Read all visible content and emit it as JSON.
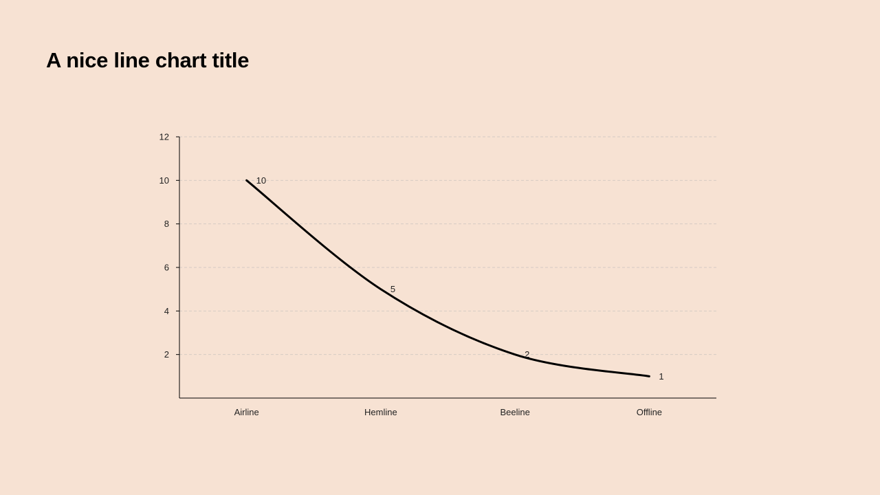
{
  "slide": {
    "title": "A nice line chart title"
  },
  "colors": {
    "background": "#f7e2d3",
    "line": "#000000",
    "axis": "#000000",
    "grid": "#d6cbc3"
  },
  "chart_data": {
    "type": "line",
    "title": "A nice line chart title",
    "categories": [
      "Airline",
      "Hemline",
      "Beeline",
      "Offline"
    ],
    "series": [
      {
        "values": [
          10,
          5,
          2,
          1
        ]
      }
    ],
    "data_labels": [
      "10",
      "5",
      "2",
      "1"
    ],
    "ylim": [
      0,
      12
    ],
    "yticks": [
      2,
      4,
      6,
      8,
      10,
      12
    ],
    "grid": "horizontal-dashed",
    "smooth": true,
    "legend": "none"
  }
}
